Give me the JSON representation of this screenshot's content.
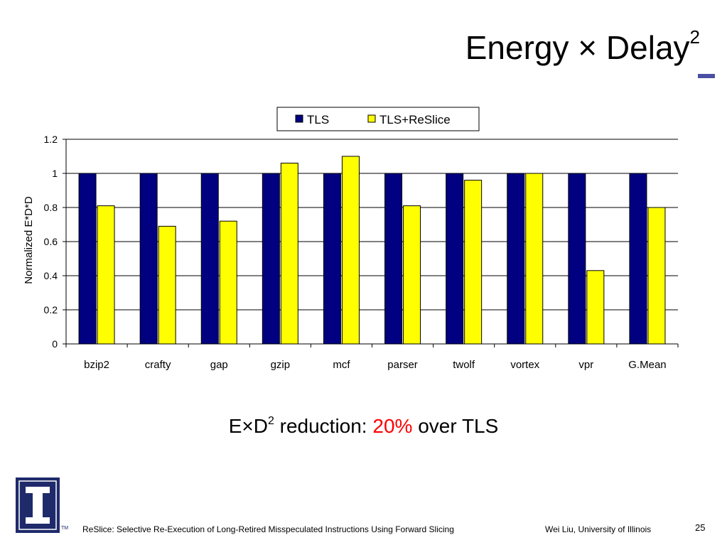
{
  "slide": {
    "title_main": "Energy × Delay",
    "title_sup": "2",
    "summary": {
      "prefix": "E×D",
      "prefix_sup": "2",
      "middle": " reduction: ",
      "highlight": "20%",
      "suffix": " over TLS"
    },
    "footer_left": "ReSlice: Selective Re-Execution of Long-Retired Misspeculated Instructions Using Forward Slicing",
    "footer_right": "Wei Liu, University of Illinois",
    "page_number": "25",
    "logo_tm": "TM",
    "colors": {
      "rule": "#4b4fa3",
      "highlight": "#ff0000",
      "logo": "#1f2a6b"
    }
  },
  "chart_data": {
    "type": "bar",
    "ylabel": "Normalized E*D*D",
    "ylim": [
      0,
      1.2
    ],
    "yticks": [
      "0",
      "0.2",
      "0.4",
      "0.6",
      "0.8",
      "1",
      "1.2"
    ],
    "grid": true,
    "legend_position": "top",
    "categories": [
      "bzip2",
      "crafty",
      "gap",
      "gzip",
      "mcf",
      "parser",
      "twolf",
      "vortex",
      "vpr",
      "G.Mean"
    ],
    "series": [
      {
        "name": "TLS",
        "color": "#000080",
        "values": [
          1,
          1,
          1,
          1,
          1,
          1,
          1,
          1,
          1,
          1
        ]
      },
      {
        "name": "TLS+ReSlice",
        "color": "#ffff00",
        "values": [
          0.81,
          0.69,
          0.72,
          1.06,
          1.1,
          0.81,
          0.96,
          1.0,
          0.43,
          0.8
        ]
      }
    ]
  }
}
